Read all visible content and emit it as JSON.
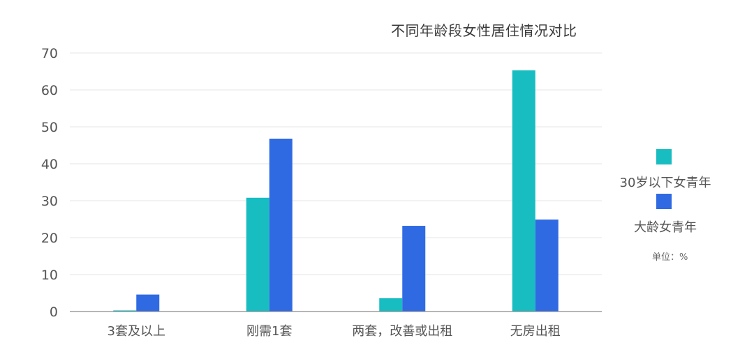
{
  "chart_data": {
    "type": "bar",
    "title": "不同年龄段女性居住情况对比",
    "categories": [
      "3套及以上",
      "刚需1套",
      "两套，改善或出租",
      "无房出租"
    ],
    "series": [
      {
        "name": "30岁以下女青年",
        "values": [
          0.3,
          30.8,
          3.6,
          65.3
        ],
        "color": "#17bdc1"
      },
      {
        "name": "大龄女青年",
        "values": [
          4.6,
          46.8,
          23.2,
          24.9
        ],
        "color": "#2f6ae3"
      }
    ],
    "xlabel": "",
    "ylabel": "",
    "ylim": [
      0,
      70
    ],
    "yticks": [
      0,
      10,
      20,
      30,
      40,
      50,
      60,
      70
    ],
    "grid": true,
    "legend_position": "right",
    "unit_note": "单位：%"
  }
}
